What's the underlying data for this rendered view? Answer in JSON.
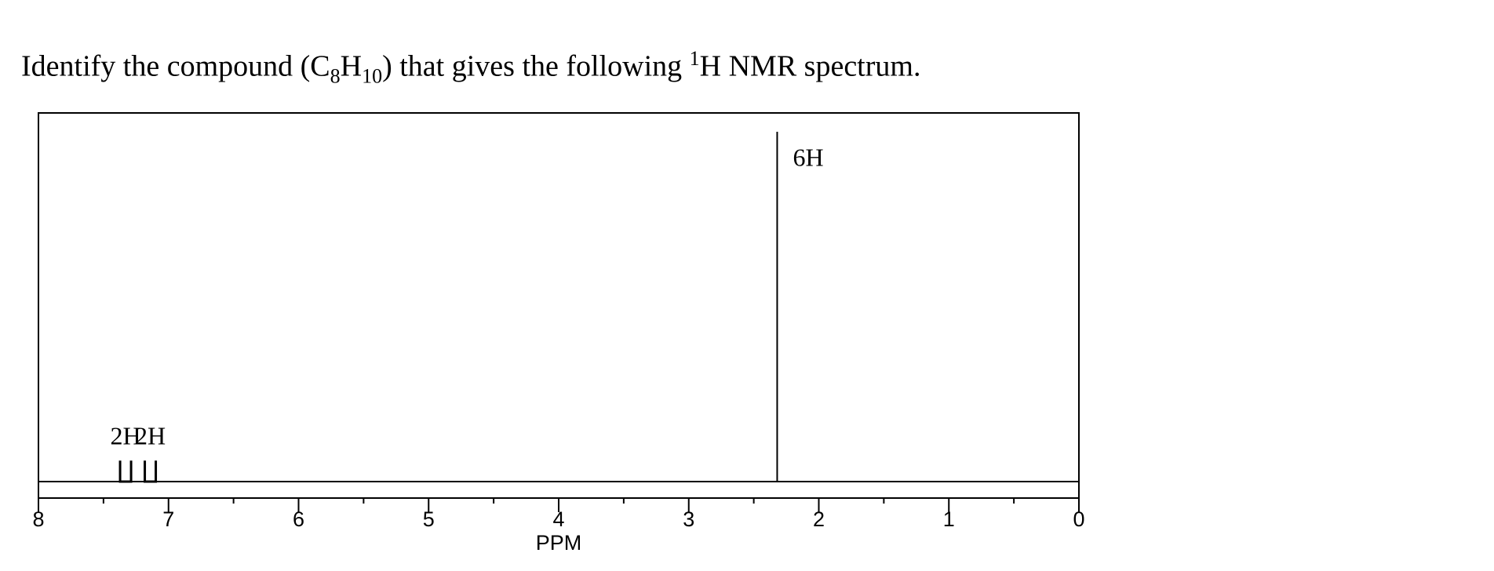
{
  "question": [
    "Identify the compound (C",
    "8",
    "H",
    "10",
    ") that gives the following ",
    "1",
    "H NMR spectrum."
  ],
  "chart_data": {
    "type": "nmr",
    "x": [
      7.33,
      7.14,
      2.32
    ],
    "values": [
      6,
      6,
      100
    ],
    "value_labels": [
      "2H",
      "2H",
      "6H"
    ],
    "xlim": [
      8,
      0
    ],
    "xticks": [
      8,
      7,
      6,
      5,
      4,
      3,
      2,
      1,
      0
    ],
    "xminor": [
      7.5,
      6.5,
      5.5,
      4.5,
      3.5,
      2.5,
      1.5,
      0.5
    ],
    "ylim": [
      0,
      100
    ],
    "xlabel": "PPM",
    "color": "#000000"
  }
}
